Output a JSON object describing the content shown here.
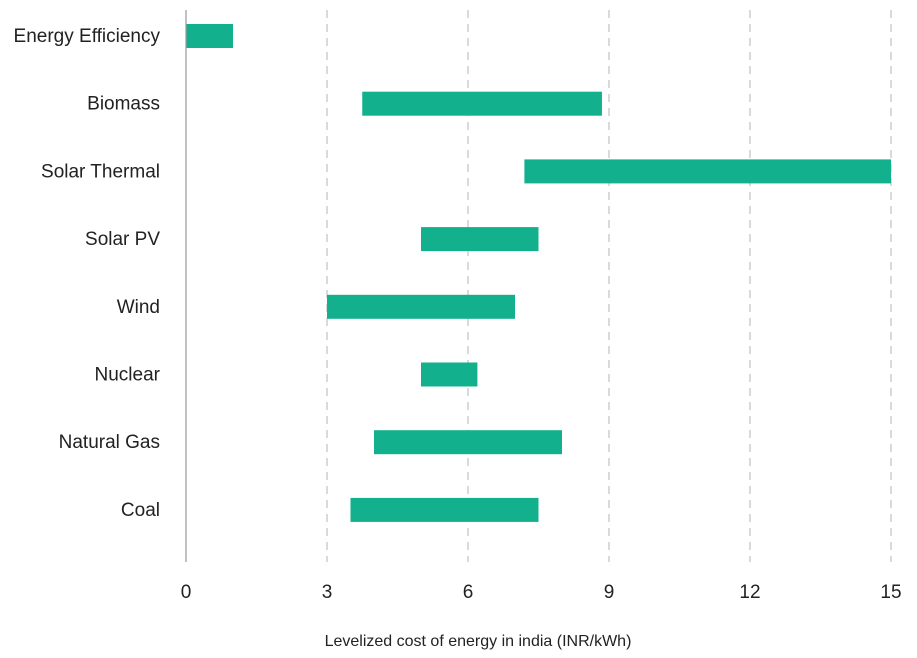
{
  "chart_data": {
    "type": "bar",
    "orientation": "horizontal",
    "bar_style": "floating-range",
    "categories": [
      "Energy Efficiency",
      "Biomass",
      "Solar Thermal",
      "Solar PV",
      "Wind",
      "Nuclear",
      "Natural Gas",
      "Coal"
    ],
    "ranges": [
      {
        "category": "Energy Efficiency",
        "low": 0,
        "high": 1
      },
      {
        "category": "Biomass",
        "low": 3.75,
        "high": 8.85
      },
      {
        "category": "Solar Thermal",
        "low": 7.2,
        "high": 15
      },
      {
        "category": "Solar PV",
        "low": 5,
        "high": 7.5
      },
      {
        "category": "Wind",
        "low": 3,
        "high": 7
      },
      {
        "category": "Nuclear",
        "low": 5,
        "high": 6.2
      },
      {
        "category": "Natural Gas",
        "low": 4,
        "high": 8
      },
      {
        "category": "Coal",
        "low": 3.5,
        "high": 7.5
      }
    ],
    "xlabel": "Levelized cost of energy in india (INR/kWh)",
    "xlim": [
      0,
      15
    ],
    "xticks": [
      0,
      3,
      6,
      9,
      12,
      15
    ],
    "xtick_labels": [
      "0",
      "3",
      "6",
      "9",
      "12",
      "15"
    ],
    "grid": "vertical dashed",
    "bar_color": "#13b08e"
  }
}
